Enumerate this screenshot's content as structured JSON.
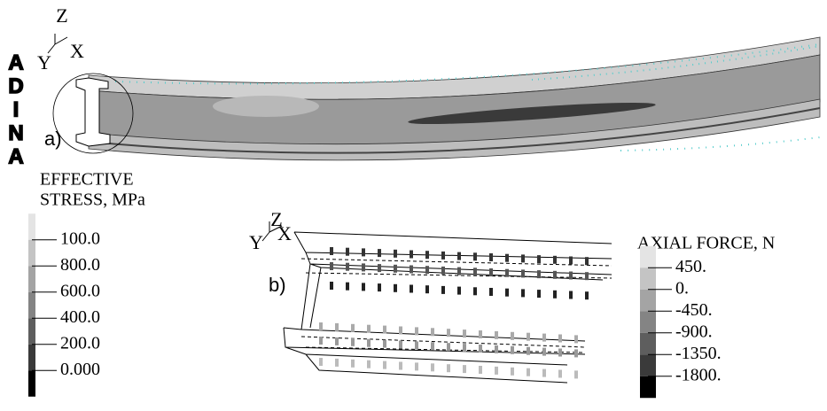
{
  "logo": [
    "A",
    "D",
    "I",
    "N",
    "A"
  ],
  "panel_a": {
    "label": "a)",
    "axes": {
      "z": "Z",
      "y": "Y",
      "x": "X"
    },
    "legend": {
      "title": [
        "EFFECTIVE",
        "STRESS, MPa"
      ],
      "levels": [
        "100.0",
        "800.0",
        "600.0",
        "400.0",
        "200.0",
        "0.000"
      ]
    }
  },
  "panel_b": {
    "label": "b)",
    "axes": {
      "z": "Z",
      "y": "Y",
      "x": "X"
    },
    "legend": {
      "title": "AXIAL FORCE, N",
      "levels": [
        "450.",
        "0.",
        "-450.",
        "-900.",
        "-1350.",
        "-1800."
      ]
    }
  }
}
